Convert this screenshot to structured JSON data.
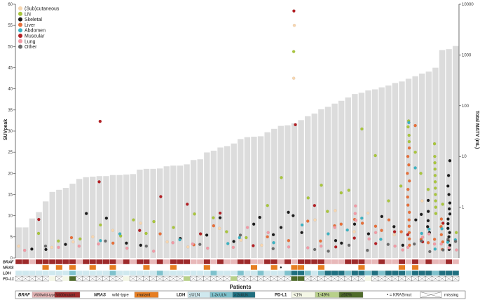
{
  "chart_data": {
    "type": "bar",
    "title": "",
    "xlabel": "Patients",
    "ylabel_left": "SUVpeak",
    "ylabel_right": "Total MATV (mL)",
    "ylim_left": [
      0,
      60
    ],
    "ylim_right_log": [
      0.1,
      10000
    ],
    "y_left_ticks": [
      "0",
      "5",
      "10",
      "15",
      "20",
      "25",
      "30",
      "35",
      "40",
      "45",
      "50",
      "55",
      "60"
    ],
    "y_right_ticks": [
      "1",
      "10",
      "100",
      "1000",
      "10000"
    ],
    "grid": false,
    "legend_position": "top-left",
    "legend": [
      {
        "name": "(Sub)cutaneous",
        "color": "#f7d6b0"
      },
      {
        "name": "LN",
        "color": "#a9c63c"
      },
      {
        "name": "Skeletal",
        "color": "#1c1c1c"
      },
      {
        "name": "Liver",
        "color": "#e8703a"
      },
      {
        "name": "Abdomen",
        "color": "#3bb3c3"
      },
      {
        "name": "Muscular",
        "color": "#b41f24"
      },
      {
        "name": "Lung",
        "color": "#f29aa5"
      },
      {
        "name": "Other",
        "color": "#6b6b6b"
      }
    ],
    "bar_series_name": "Total MATV",
    "patients_n": 66,
    "matv_ml": [
      0.4,
      0.4,
      0.6,
      0.8,
      1.3,
      2.0,
      2.2,
      2.4,
      2.9,
      3.6,
      3.9,
      4.0,
      4.1,
      4.1,
      4.3,
      4.3,
      4.4,
      4.5,
      5.5,
      5.7,
      5.7,
      5.8,
      6.4,
      6.6,
      6.6,
      7.0,
      8.5,
      8.8,
      12.0,
      13.0,
      15.0,
      16.0,
      18.0,
      22.0,
      24.0,
      24.5,
      25.0,
      30.0,
      35.0,
      40.0,
      41.0,
      45.0,
      52.0,
      62.0,
      70.0,
      85.0,
      95.0,
      110.0,
      125.0,
      145.0,
      170.0,
      180.0,
      200.0,
      210.0,
      230.0,
      250.0,
      280.0,
      300.0,
      340.0,
      380.0,
      430.0,
      470.0,
      560.0,
      1250.0,
      1300.0,
      1500.0
    ],
    "lesions": {
      "subcutaneous": [
        [
          0,
          2.8
        ],
        [
          5,
          2.5
        ],
        [
          8,
          3.8
        ],
        [
          11,
          5.0
        ],
        [
          14,
          6.5
        ],
        [
          18,
          8.2
        ],
        [
          22,
          3.8
        ],
        [
          25,
          2.6
        ],
        [
          27,
          5.6
        ],
        [
          30,
          7.0
        ],
        [
          33,
          4.2
        ],
        [
          36,
          3.0
        ],
        [
          41,
          55.0
        ],
        [
          41,
          42.5
        ],
        [
          44,
          9.0
        ],
        [
          47,
          11.2
        ],
        [
          50,
          6.2
        ],
        [
          52,
          10.6
        ],
        [
          56,
          5.5
        ],
        [
          60,
          13.5
        ],
        [
          63,
          8.0
        ]
      ],
      "ln": [
        [
          3,
          5.8
        ],
        [
          6,
          4.0
        ],
        [
          9,
          4.5
        ],
        [
          12,
          7.8
        ],
        [
          15,
          5.2
        ],
        [
          17,
          9.0
        ],
        [
          19,
          5.8
        ],
        [
          20,
          8.6
        ],
        [
          23,
          7.2
        ],
        [
          26,
          10.4
        ],
        [
          29,
          9.5
        ],
        [
          31,
          6.2
        ],
        [
          34,
          4.8
        ],
        [
          37,
          12.4
        ],
        [
          39,
          19.0
        ],
        [
          41,
          48.8
        ],
        [
          43,
          14.2
        ],
        [
          45,
          17.2
        ],
        [
          46,
          11.0
        ],
        [
          48,
          15.4
        ],
        [
          49,
          16.0
        ],
        [
          51,
          30.5
        ],
        [
          53,
          24.2
        ],
        [
          55,
          13.5
        ],
        [
          57,
          17.0
        ],
        [
          58,
          32.4
        ],
        [
          58,
          31.0
        ],
        [
          58,
          29.0
        ],
        [
          58,
          27.5
        ],
        [
          59,
          25.0
        ],
        [
          60,
          20.0
        ],
        [
          61,
          16.2
        ],
        [
          62,
          27.0
        ],
        [
          62,
          24.0
        ],
        [
          62,
          22.5
        ],
        [
          62,
          21.0
        ],
        [
          62,
          19.5
        ],
        [
          62,
          18.0
        ],
        [
          62,
          16.5
        ],
        [
          62,
          15.0
        ],
        [
          62,
          13.5
        ],
        [
          62,
          12.0
        ],
        [
          62,
          10.5
        ],
        [
          63,
          12.7
        ],
        [
          65,
          6.0
        ]
      ],
      "skeletal": [
        [
          2,
          2.1
        ],
        [
          4,
          2.0
        ],
        [
          7,
          3.2
        ],
        [
          10,
          10.5
        ],
        [
          13,
          9.4
        ],
        [
          16,
          3.5
        ],
        [
          18,
          3.0
        ],
        [
          24,
          4.6
        ],
        [
          28,
          5.4
        ],
        [
          30,
          9.5
        ],
        [
          32,
          3.9
        ],
        [
          35,
          8.0
        ],
        [
          36,
          9.6
        ],
        [
          38,
          5.5
        ],
        [
          39,
          7.2
        ],
        [
          40,
          10.8
        ],
        [
          41,
          10.0
        ],
        [
          42,
          6.0
        ],
        [
          47,
          4.1
        ],
        [
          48,
          3.5
        ],
        [
          50,
          8.0
        ],
        [
          52,
          5.7
        ],
        [
          54,
          9.8
        ],
        [
          56,
          7.4
        ],
        [
          57,
          3.0
        ],
        [
          59,
          9.0
        ],
        [
          60,
          10.3
        ],
        [
          61,
          13.6
        ],
        [
          61,
          11.0
        ],
        [
          61,
          8.8
        ],
        [
          61,
          7.4
        ],
        [
          61,
          6.0
        ],
        [
          64,
          23.0
        ],
        [
          64,
          19.5
        ],
        [
          64,
          17.0
        ],
        [
          64,
          15.0
        ],
        [
          64,
          13.0
        ],
        [
          64,
          11.6
        ],
        [
          64,
          10.4
        ],
        [
          64,
          9.2
        ],
        [
          64,
          8.1
        ],
        [
          64,
          7.0
        ],
        [
          64,
          6.0
        ],
        [
          64,
          5.0
        ],
        [
          64,
          4.0
        ],
        [
          64,
          3.0
        ],
        [
          64,
          2.0
        ]
      ],
      "liver": [
        [
          8,
          4.8
        ],
        [
          14,
          3.5
        ],
        [
          21,
          5.7
        ],
        [
          26,
          3.1
        ],
        [
          29,
          7.6
        ],
        [
          37,
          5.0
        ],
        [
          40,
          4.1
        ],
        [
          43,
          8.7
        ],
        [
          45,
          4.0
        ],
        [
          47,
          7.6
        ],
        [
          48,
          8.0
        ],
        [
          50,
          9.1
        ],
        [
          51,
          8.2
        ],
        [
          53,
          7.5
        ],
        [
          54,
          6.5
        ],
        [
          55,
          9.0
        ],
        [
          57,
          6.2
        ],
        [
          58,
          26.0
        ],
        [
          58,
          24.0
        ],
        [
          58,
          22.0
        ],
        [
          58,
          20.0
        ],
        [
          58,
          18.2
        ],
        [
          58,
          16.2
        ],
        [
          58,
          14.4
        ],
        [
          58,
          12.5
        ],
        [
          58,
          10.8
        ],
        [
          58,
          9.0
        ],
        [
          58,
          7.5
        ],
        [
          58,
          6.0
        ],
        [
          58,
          4.5
        ],
        [
          58,
          3.0
        ],
        [
          59,
          31.3
        ],
        [
          60,
          4.4
        ],
        [
          61,
          3.6
        ],
        [
          62,
          4.4
        ],
        [
          63,
          9.2
        ],
        [
          63,
          7.4
        ],
        [
          63,
          5.5
        ],
        [
          63,
          3.8
        ],
        [
          63,
          2.0
        ]
      ],
      "abdomen": [
        [
          12,
          4.1
        ],
        [
          15,
          5.7
        ],
        [
          24,
          4.3
        ],
        [
          31,
          3.4
        ],
        [
          33,
          4.8
        ],
        [
          38,
          3.6
        ],
        [
          42,
          7.8
        ],
        [
          46,
          5.7
        ],
        [
          49,
          6.6
        ],
        [
          51,
          9.4
        ],
        [
          54,
          4.4
        ],
        [
          58,
          32.0
        ],
        [
          59,
          21.3
        ],
        [
          60,
          5.8
        ],
        [
          61,
          6.8
        ],
        [
          62,
          2.1
        ],
        [
          63,
          6.9
        ],
        [
          64,
          3.7
        ],
        [
          65,
          4.3
        ]
      ],
      "muscular": [
        [
          3,
          9.1
        ],
        [
          12,
          32.3
        ],
        [
          12,
          18.0
        ],
        [
          18,
          6.5
        ],
        [
          21,
          14.5
        ],
        [
          25,
          12.7
        ],
        [
          27,
          5.7
        ],
        [
          30,
          10.6
        ],
        [
          35,
          2.9
        ],
        [
          41,
          58.4
        ],
        [
          41,
          31.5
        ],
        [
          44,
          12.4
        ],
        [
          47,
          2.6
        ],
        [
          50,
          4.7
        ],
        [
          53,
          3.4
        ],
        [
          56,
          6.2
        ],
        [
          58,
          5.5
        ],
        [
          60,
          3.8
        ],
        [
          63,
          8.2
        ]
      ],
      "lung": [
        [
          1,
          1.8
        ],
        [
          6,
          2.5
        ],
        [
          9,
          2.8
        ],
        [
          12,
          3.3
        ],
        [
          16,
          2.3
        ],
        [
          20,
          1.6
        ],
        [
          23,
          3.6
        ],
        [
          26,
          3.3
        ],
        [
          28,
          2.3
        ],
        [
          32,
          2.5
        ],
        [
          34,
          7.2
        ],
        [
          37,
          6.0
        ],
        [
          40,
          2.6
        ],
        [
          43,
          2.4
        ],
        [
          45,
          2.8
        ],
        [
          47,
          7.2
        ],
        [
          50,
          12.3
        ],
        [
          50,
          10.5
        ],
        [
          50,
          8.9
        ],
        [
          52,
          4.5
        ],
        [
          53,
          6.0
        ],
        [
          56,
          2.8
        ],
        [
          57,
          1.9
        ],
        [
          58,
          2.5
        ],
        [
          60,
          4.9
        ],
        [
          61,
          5.7
        ],
        [
          62,
          3.3
        ],
        [
          63,
          3.3
        ],
        [
          64,
          2.4
        ],
        [
          65,
          1.9
        ]
      ],
      "other": [
        [
          4,
          2.8
        ],
        [
          13,
          4.0
        ],
        [
          19,
          2.8
        ],
        [
          27,
          3.2
        ],
        [
          33,
          5.4
        ],
        [
          38,
          2.2
        ],
        [
          44,
          2.0
        ],
        [
          46,
          1.6
        ],
        [
          49,
          3.0
        ],
        [
          52,
          1.8
        ],
        [
          55,
          3.2
        ],
        [
          59,
          3.3
        ],
        [
          61,
          1.5
        ],
        [
          63,
          1.9
        ],
        [
          65,
          3.9
        ],
        [
          64,
          4.4
        ],
        [
          60,
          4.0
        ]
      ]
    },
    "annotation_rows": {
      "braf": {
        "label": "BRAF",
        "values": [
          "mut",
          "mut",
          "wt",
          "mut",
          "mut",
          "mut",
          "mut",
          "mut",
          "mut",
          "wt",
          "mut",
          "mut",
          "mut",
          "mut",
          "mut",
          "wt",
          "mut",
          "wt",
          "mut",
          "mut",
          "wt",
          "mut",
          "wt",
          "mut",
          "mut",
          "mut",
          "wt",
          "wt",
          "mut",
          "wt",
          "mut",
          "wt",
          "wt",
          "mut",
          "mut",
          "wt",
          "wt",
          "mut",
          "mut",
          "wt",
          "mut",
          "wt",
          "mut",
          "mut",
          "mut",
          "mut",
          "wt",
          "wt",
          "wt",
          "mut",
          "mut",
          "mut",
          "wt",
          "wt",
          "mut",
          "wt",
          "wt",
          "mut",
          "wt",
          "mut",
          "wt",
          "mut",
          "wt",
          "wt",
          "mut",
          "wt"
        ]
      },
      "nras": {
        "label": "NRAS",
        "values": [
          "wt",
          "wt",
          "wt",
          "wt",
          "mut",
          "wt",
          "mut",
          "wt",
          "mut",
          "wt",
          "wt",
          "mut",
          "wt",
          "wt",
          "mut",
          "wt",
          "wt",
          "wt",
          "wt",
          "mut",
          "wt",
          "wt",
          "wt",
          "mut",
          "wt",
          "wt",
          "wt",
          "wt",
          "mut",
          "wt",
          "wt",
          "wt",
          "wt",
          "wt",
          "wt",
          "mut",
          "wt",
          "wt",
          "mut",
          "wt",
          "wt",
          "mut",
          "mut",
          "wt",
          "wt",
          "mut",
          "wt",
          "wt",
          "wt",
          "wt",
          "wt",
          "mut",
          "wt",
          "wt",
          "wt",
          "wt",
          "wt",
          "mut",
          "wt",
          "mut",
          "wt",
          "wt",
          "wt",
          "wt",
          "wt",
          "wt"
        ]
      },
      "ldh": {
        "label": "LDH",
        "values": [
          "uln",
          "uln",
          "uln",
          "uln",
          "uln",
          "uln",
          "uln",
          "uln",
          "1-2x",
          "uln",
          "uln",
          "uln",
          "uln",
          "uln",
          "1-2x",
          "uln",
          "uln",
          "uln",
          "uln",
          "uln",
          "uln",
          "1-2x",
          "uln",
          "uln",
          "uln",
          "uln",
          "uln",
          "uln",
          "uln",
          "1-2x",
          "uln",
          "uln",
          "uln",
          "1-2x",
          "uln",
          "uln",
          "1-2x",
          "uln",
          "uln",
          "uln",
          "1-2x",
          ">2x",
          ">2x",
          "1-2x",
          "uln",
          "1-2x",
          ">2x",
          ">2x",
          ">2x",
          "1-2x",
          ">2x",
          ">2x",
          "1-2x",
          ">2x",
          "1-2x",
          ">2x",
          ">2x",
          ">2x",
          "1-2x",
          ">2x",
          ">2x",
          ">2x",
          "1-2x",
          ">2x",
          ">2x",
          ">2x"
        ]
      },
      "pdl1": {
        "label": "PD-L1",
        "values": [
          "na",
          "na",
          "na",
          "na",
          "na",
          "<1",
          "na",
          "<1",
          ">50",
          "na",
          "na",
          "na",
          "na",
          "na",
          "na",
          "na",
          "<1",
          "na",
          "na",
          "na",
          "na",
          "na",
          "na",
          "na",
          "na",
          "1-49",
          "na",
          "na",
          "na",
          "na",
          "na",
          "na",
          "1-49",
          "na",
          "na",
          "na",
          "na",
          "na",
          "na",
          "na",
          "na",
          ">50",
          ">50",
          "na",
          "na",
          "na",
          "na",
          "na",
          "na",
          "na",
          "na",
          "na",
          "<1",
          "na",
          "na",
          "na",
          "na",
          "na",
          "na",
          "na",
          "na",
          "na",
          "na",
          "na",
          "na",
          "na"
        ]
      }
    },
    "kras_marker_patient": 39
  },
  "key": {
    "braf_label": "BRAF",
    "braf_wt": "V600wild-type",
    "braf_mut": "V600mutant",
    "nras_label": "NRAS",
    "nras_wt": "wild-type",
    "nras_mut": "mutant",
    "ldh_label": "LDH",
    "ldh_uln": "≤ULN",
    "ldh_12": "1-2x ULN",
    "ldh_2": "> 2xULN",
    "pdl1_label": "PD-L1",
    "pdl1_lt1": "<1%",
    "pdl1_149": "1-49%",
    "pdl1_50": "≥50%",
    "kras": "• = KRASmut",
    "missing": "missing"
  },
  "colors": {
    "bar": "#dcdcdc",
    "braf_wt": "#e8b8b9",
    "braf_mut": "#9e2a2b",
    "nras_wt": "#ffffff",
    "nras_mut": "#e67e22",
    "ldh_uln": "#cfe8ee",
    "ldh_12": "#7ec1cc",
    "ldh_2": "#1f6f7f",
    "pdl1_lt1": "#f4f7e6",
    "pdl1_149": "#b8d08a",
    "pdl1_50": "#4f6b2a"
  }
}
